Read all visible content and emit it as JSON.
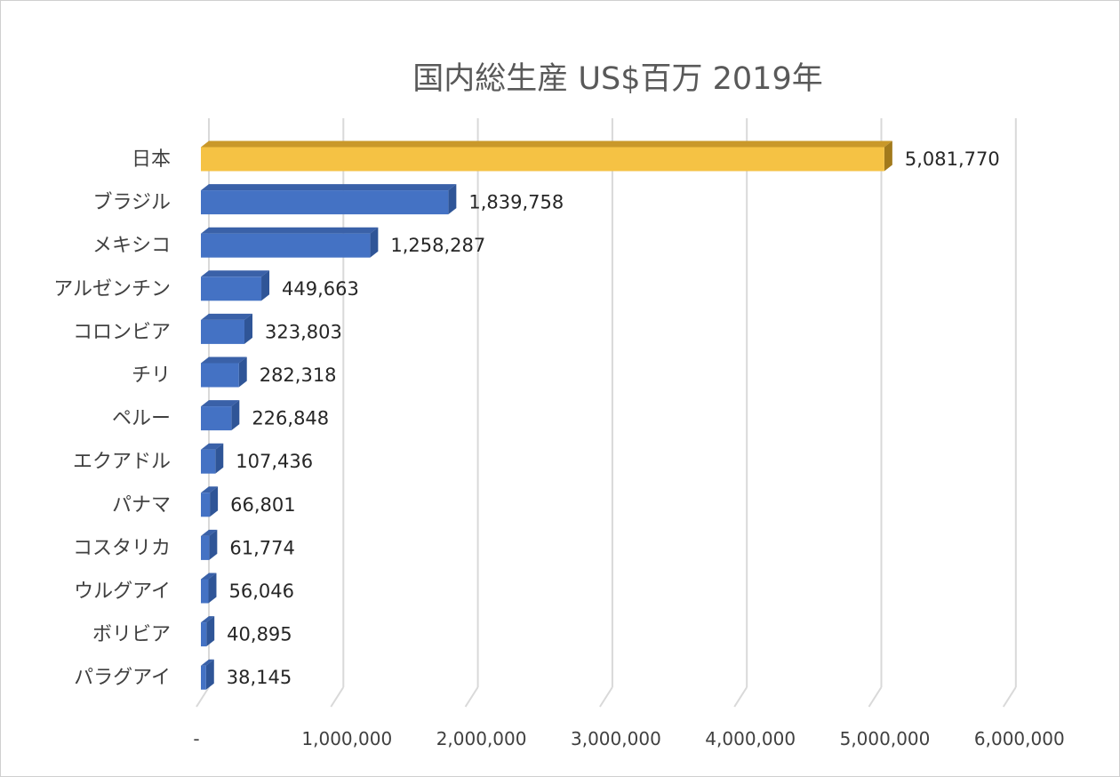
{
  "chart_data": {
    "type": "bar",
    "orientation": "horizontal",
    "style": "3d",
    "title": "国内総生産 US$百万 2019年",
    "categories": [
      "日本",
      "ブラジル",
      "メキシコ",
      "アルゼンチン",
      "コロンビア",
      "チリ",
      "ペルー",
      "エクアドル",
      "パナマ",
      "コスタリカ",
      "ウルグアイ",
      "ボリビア",
      "パラグアイ"
    ],
    "values": [
      5081770,
      1839758,
      1258287,
      449663,
      323803,
      282318,
      226848,
      107436,
      66801,
      61774,
      56046,
      40895,
      38145
    ],
    "value_labels": [
      "5,081,770",
      "1,839,758",
      "1,258,287",
      "449,663",
      "323,803",
      "282,318",
      "226,848",
      "107,436",
      "66,801",
      "61,774",
      "56,046",
      "40,895",
      "38,145"
    ],
    "xlim": [
      0,
      6000000
    ],
    "x_ticks": [
      0,
      1000000,
      2000000,
      3000000,
      4000000,
      5000000,
      6000000
    ],
    "x_tick_labels": [
      "-",
      "1,000,000",
      "2,000,000",
      "3,000,000",
      "4,000,000",
      "5,000,000",
      "6,000,000"
    ],
    "grid": true,
    "highlight_index": 0,
    "colors": {
      "bar": "#4472c4",
      "bar_top": "#3a61a8",
      "bar_side": "#2f5597",
      "highlight": "#f5c244",
      "highlight_top": "#c9982a",
      "highlight_side": "#a27a1c",
      "grid": "#d9d9d9"
    }
  }
}
